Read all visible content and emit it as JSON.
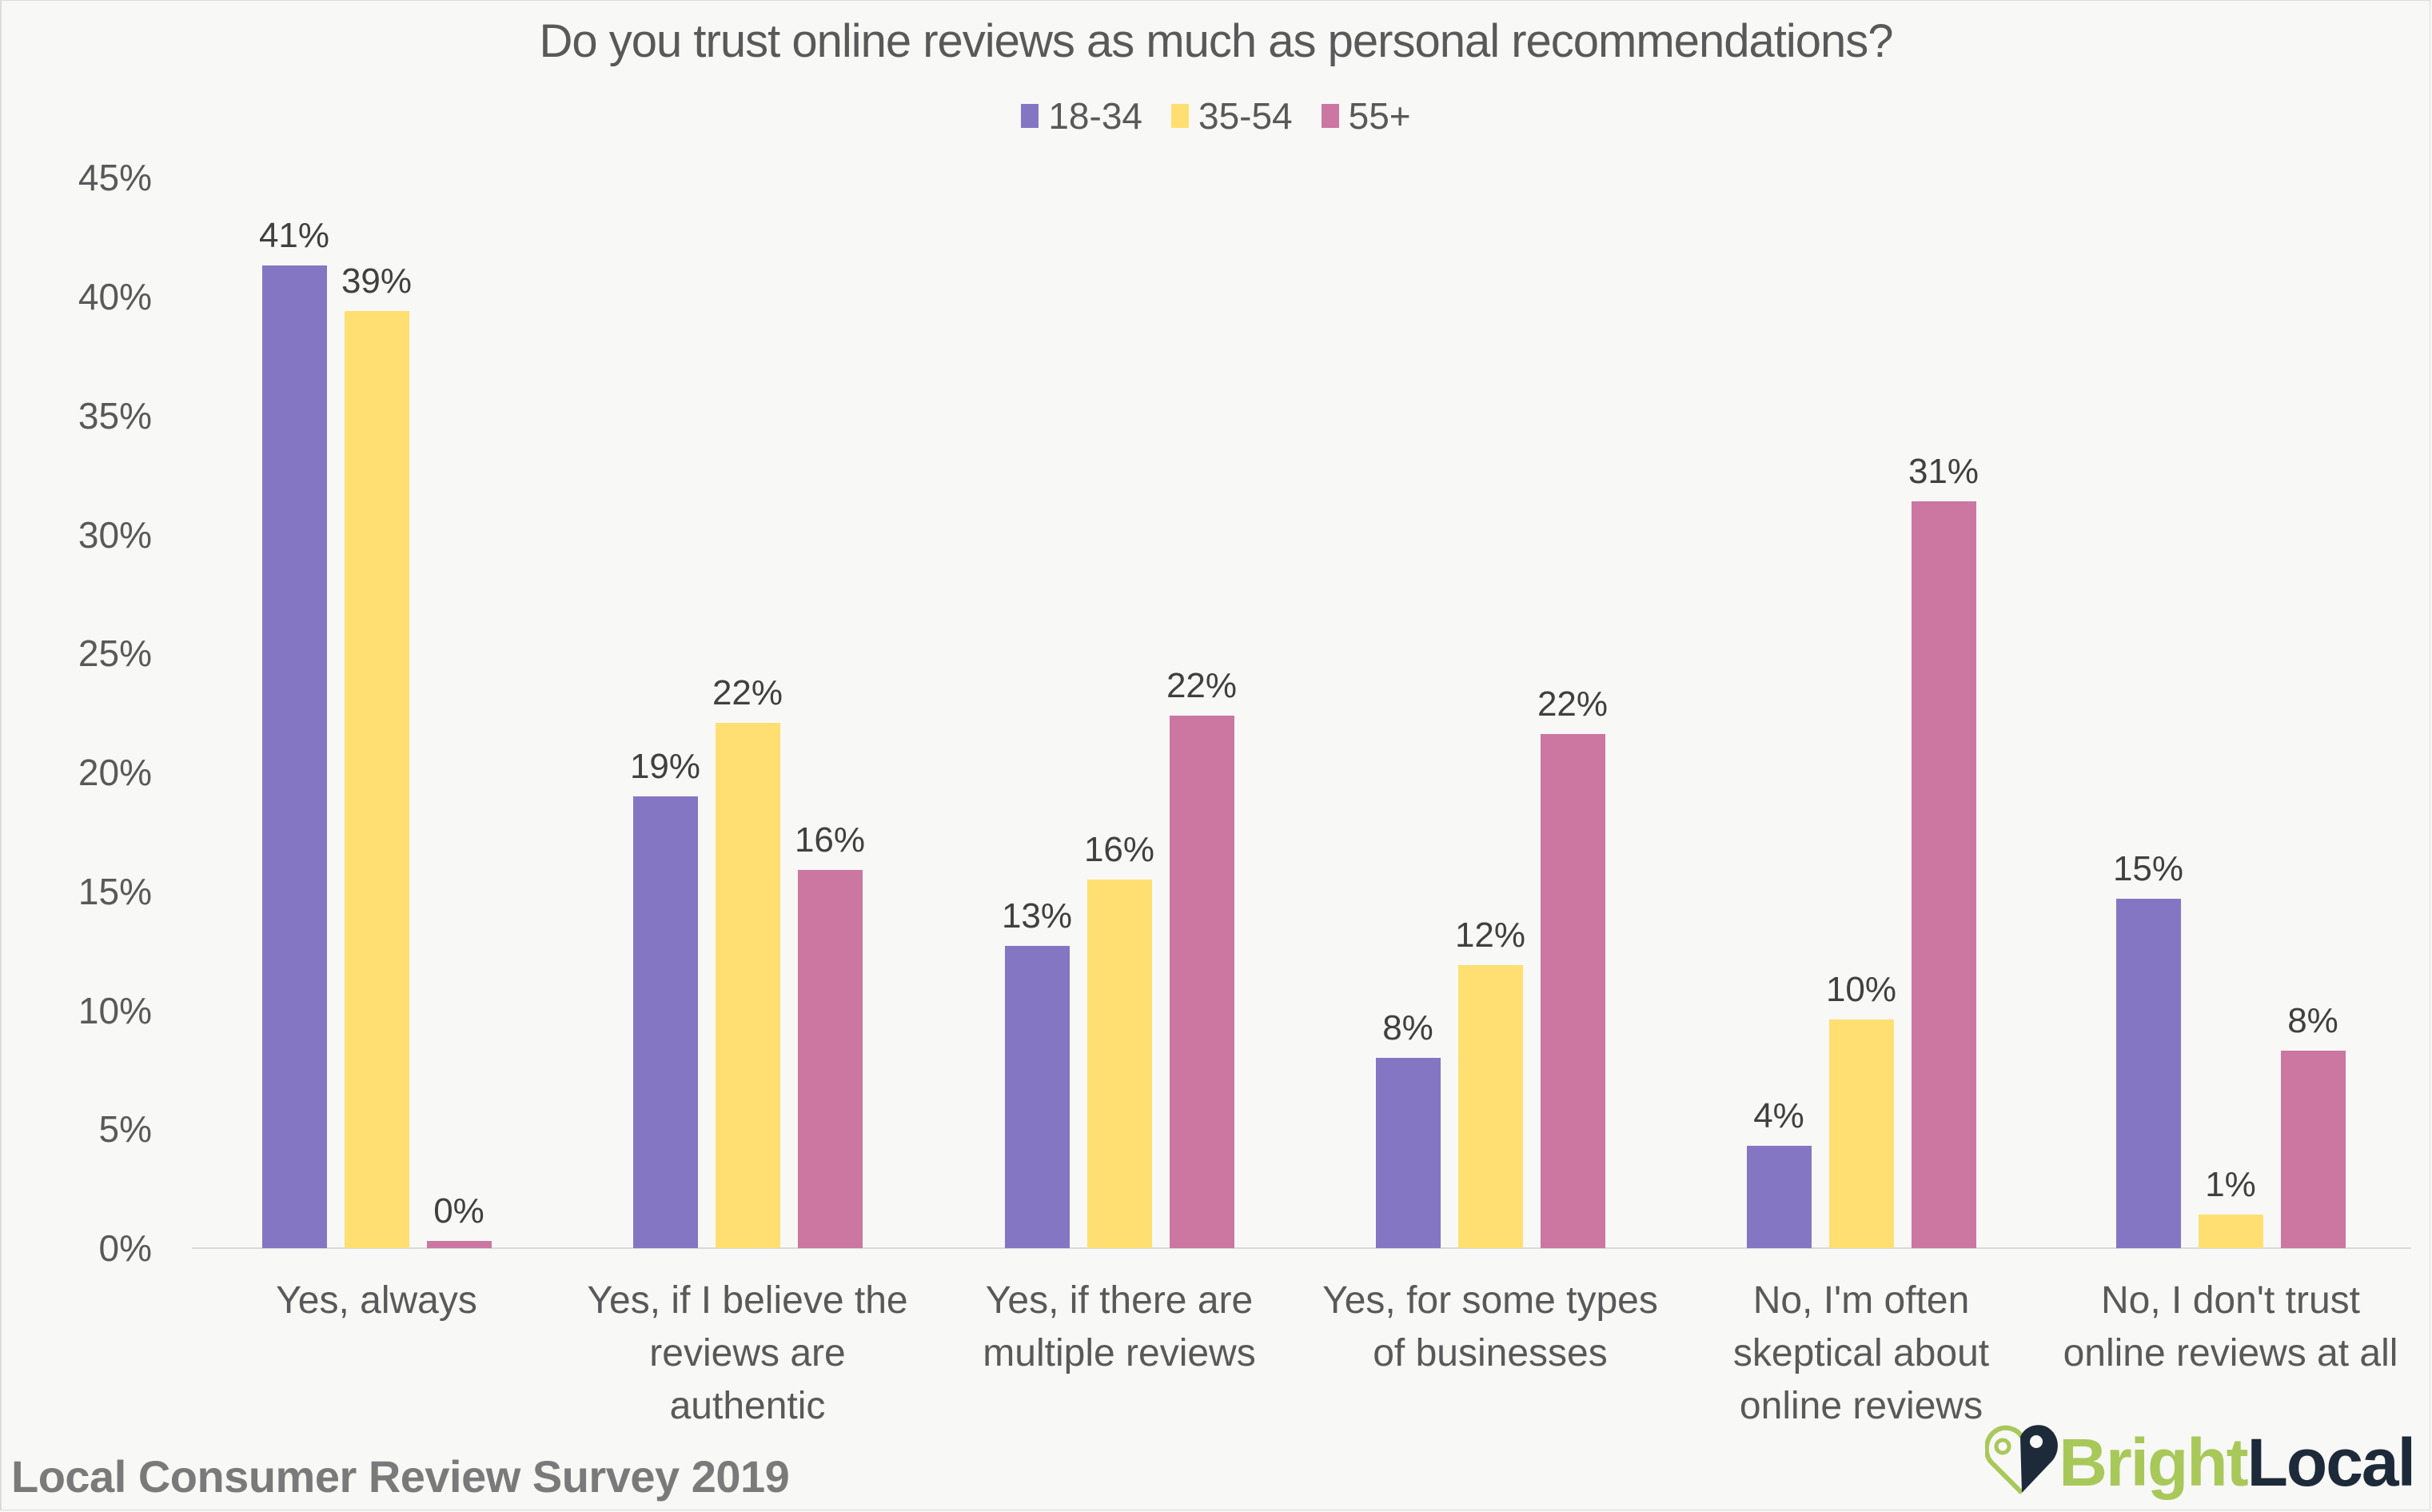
{
  "chart_data": {
    "type": "bar",
    "title": "Do you trust online reviews as much as personal recommendations?",
    "xlabel": "",
    "ylabel": "",
    "ylim": [
      0,
      45
    ],
    "yticks": [
      "0%",
      "5%",
      "10%",
      "15%",
      "20%",
      "25%",
      "30%",
      "35%",
      "40%",
      "45%"
    ],
    "grid": false,
    "legend_position": "top",
    "categories": [
      "Yes, always",
      "Yes, if I believe the reviews are authentic",
      "Yes, if there are multiple reviews",
      "Yes, for some types of businesses",
      "No, I'm often skeptical about online reviews",
      "No, I don't trust online reviews at all"
    ],
    "series": [
      {
        "name": "18-34",
        "color": "#8576c4",
        "values": [
          41.3,
          19.0,
          12.7,
          8.0,
          4.3,
          14.7
        ],
        "labels": [
          "41%",
          "19%",
          "13%",
          "8%",
          "4%",
          "15%"
        ]
      },
      {
        "name": "35-54",
        "color": "#ffdf71",
        "values": [
          39.4,
          22.1,
          15.5,
          11.9,
          9.6,
          1.4
        ],
        "labels": [
          "39%",
          "22%",
          "16%",
          "12%",
          "10%",
          "1%"
        ]
      },
      {
        "name": "55+",
        "color": "#cb77a2",
        "values": [
          0.3,
          15.9,
          22.4,
          21.6,
          31.4,
          8.3
        ],
        "labels": [
          "0%",
          "16%",
          "22%",
          "22%",
          "31%",
          "8%"
        ]
      }
    ]
  },
  "category_labels": [
    "Yes, always",
    "Yes, if I believe the\nreviews are\nauthentic",
    "Yes, if there are\nmultiple reviews",
    "Yes, for some types\nof businesses",
    "No, I'm often\nskeptical about\nonline reviews",
    "No, I don't trust\nonline reviews at all"
  ],
  "footer": "Local Consumer Review Survey 2019",
  "logo": {
    "part1": "Bright",
    "part2": "Local",
    "icon": "map-pin-heart-icon",
    "color1": "#a9c85a",
    "color2": "#1d2a3a"
  }
}
